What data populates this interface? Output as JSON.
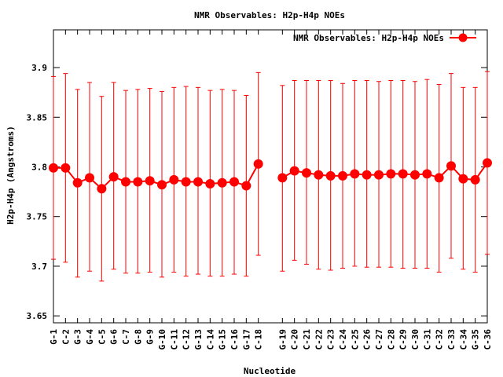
{
  "chart_data": {
    "type": "line",
    "title": "NMR Observables: H2p-H4p NOEs",
    "xlabel": "Nucleotide",
    "ylabel": "H2p-H4p (Angstroms)",
    "ylim": [
      3.643,
      3.938
    ],
    "yticks": [
      3.65,
      3.7,
      3.75,
      3.8,
      3.85,
      3.9
    ],
    "ytick_labels": [
      "3.65",
      "3.7",
      "3.75",
      "3.8",
      "3.85",
      "3.9"
    ],
    "grid": false,
    "legend_position": "top-right",
    "color": "#ff0000",
    "series": [
      {
        "name": "NMR Observables: H2p-H4p NOEs",
        "segments": [
          [
            {
              "x": "G-1",
              "y": 3.799,
              "lo": 3.707,
              "hi": 3.891
            },
            {
              "x": "C-2",
              "y": 3.799,
              "lo": 3.704,
              "hi": 3.894
            },
            {
              "x": "G-3",
              "y": 3.784,
              "lo": 3.689,
              "hi": 3.878
            },
            {
              "x": "G-4",
              "y": 3.789,
              "lo": 3.695,
              "hi": 3.885
            },
            {
              "x": "C-5",
              "y": 3.778,
              "lo": 3.685,
              "hi": 3.871
            },
            {
              "x": "G-6",
              "y": 3.79,
              "lo": 3.697,
              "hi": 3.885
            },
            {
              "x": "C-7",
              "y": 3.785,
              "lo": 3.693,
              "hi": 3.877
            },
            {
              "x": "G-8",
              "y": 3.785,
              "lo": 3.693,
              "hi": 3.878
            },
            {
              "x": "G-9",
              "y": 3.786,
              "lo": 3.694,
              "hi": 3.879
            },
            {
              "x": "G-10",
              "y": 3.782,
              "lo": 3.689,
              "hi": 3.876
            },
            {
              "x": "C-11",
              "y": 3.787,
              "lo": 3.694,
              "hi": 3.88
            },
            {
              "x": "C-12",
              "y": 3.785,
              "lo": 3.69,
              "hi": 3.881
            },
            {
              "x": "G-13",
              "y": 3.785,
              "lo": 3.692,
              "hi": 3.88
            },
            {
              "x": "C-14",
              "y": 3.783,
              "lo": 3.69,
              "hi": 3.877
            },
            {
              "x": "G-15",
              "y": 3.784,
              "lo": 3.69,
              "hi": 3.878
            },
            {
              "x": "C-16",
              "y": 3.785,
              "lo": 3.692,
              "hi": 3.877
            },
            {
              "x": "G-17",
              "y": 3.781,
              "lo": 3.69,
              "hi": 3.872
            },
            {
              "x": "C-18",
              "y": 3.803,
              "lo": 3.711,
              "hi": 3.895
            }
          ],
          [
            {
              "x": "G-19",
              "y": 3.789,
              "lo": 3.695,
              "hi": 3.882
            },
            {
              "x": "C-20",
              "y": 3.796,
              "lo": 3.706,
              "hi": 3.887
            },
            {
              "x": "C-21",
              "y": 3.794,
              "lo": 3.702,
              "hi": 3.887
            },
            {
              "x": "C-22",
              "y": 3.792,
              "lo": 3.697,
              "hi": 3.887
            },
            {
              "x": "C-23",
              "y": 3.791,
              "lo": 3.696,
              "hi": 3.887
            },
            {
              "x": "C-24",
              "y": 3.791,
              "lo": 3.698,
              "hi": 3.884
            },
            {
              "x": "C-25",
              "y": 3.793,
              "lo": 3.7,
              "hi": 3.887
            },
            {
              "x": "C-26",
              "y": 3.792,
              "lo": 3.699,
              "hi": 3.887
            },
            {
              "x": "C-27",
              "y": 3.792,
              "lo": 3.699,
              "hi": 3.886
            },
            {
              "x": "C-28",
              "y": 3.793,
              "lo": 3.699,
              "hi": 3.887
            },
            {
              "x": "C-29",
              "y": 3.793,
              "lo": 3.698,
              "hi": 3.887
            },
            {
              "x": "C-30",
              "y": 3.792,
              "lo": 3.698,
              "hi": 3.886
            },
            {
              "x": "C-31",
              "y": 3.793,
              "lo": 3.698,
              "hi": 3.888
            },
            {
              "x": "C-32",
              "y": 3.789,
              "lo": 3.694,
              "hi": 3.883
            },
            {
              "x": "C-33",
              "y": 3.801,
              "lo": 3.708,
              "hi": 3.894
            },
            {
              "x": "C-34",
              "y": 3.788,
              "lo": 3.697,
              "hi": 3.88
            },
            {
              "x": "G-35",
              "y": 3.787,
              "lo": 3.694,
              "hi": 3.88
            },
            {
              "x": "C-36",
              "y": 3.804,
              "lo": 3.712,
              "hi": 3.896
            }
          ]
        ]
      }
    ]
  }
}
